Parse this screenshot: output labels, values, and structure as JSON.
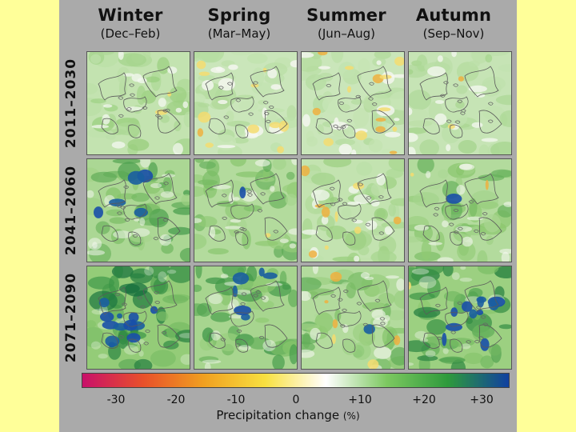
{
  "columns": [
    {
      "title": "Winter",
      "subtitle": "(Dec–Feb)"
    },
    {
      "title": "Spring",
      "subtitle": "(Mar–May)"
    },
    {
      "title": "Summer",
      "subtitle": "(Jun–Aug)"
    },
    {
      "title": "Autumn",
      "subtitle": "(Sep–Nov)"
    }
  ],
  "rows": [
    {
      "label": "2011–2030"
    },
    {
      "label": "2041–2060"
    },
    {
      "label": "2071–2090"
    }
  ],
  "panels": [
    [
      {
        "season": "Winter",
        "period": "2011–2030",
        "dominant_change": "slight increase (0 to +10%)",
        "intensity": 0.25,
        "dry_fraction": 0.05
      },
      {
        "season": "Spring",
        "period": "2011–2030",
        "dominant_change": "mixed, slight decrease in places (-10% to +10%)",
        "intensity": 0.15,
        "dry_fraction": 0.35
      },
      {
        "season": "Summer",
        "period": "2011–2030",
        "dominant_change": "mixed, slight decrease in places (-10% to +10%)",
        "intensity": 0.15,
        "dry_fraction": 0.45
      },
      {
        "season": "Autumn",
        "period": "2011–2030",
        "dominant_change": "slight increase (0 to +10%)",
        "intensity": 0.2,
        "dry_fraction": 0.05
      }
    ],
    [
      {
        "season": "Winter",
        "period": "2041–2060",
        "dominant_change": "increase (+10 to +20%), locally +30%",
        "intensity": 0.55,
        "dry_fraction": 0.0
      },
      {
        "season": "Spring",
        "period": "2041–2060",
        "dominant_change": "increase (+10 to +20%)",
        "intensity": 0.45,
        "dry_fraction": 0.02
      },
      {
        "season": "Summer",
        "period": "2041–2060",
        "dominant_change": "slight increase, some decrease (-10% to +10%)",
        "intensity": 0.25,
        "dry_fraction": 0.3
      },
      {
        "season": "Autumn",
        "period": "2041–2060",
        "dominant_change": "increase (+10 to +20%)",
        "intensity": 0.45,
        "dry_fraction": 0.05
      }
    ],
    [
      {
        "season": "Winter",
        "period": "2071–2090",
        "dominant_change": "strong increase (+20 to +30%)",
        "intensity": 0.85,
        "dry_fraction": 0.0
      },
      {
        "season": "Spring",
        "period": "2071–2090",
        "dominant_change": "increase (+10 to +30%)",
        "intensity": 0.6,
        "dry_fraction": 0.0
      },
      {
        "season": "Summer",
        "period": "2071–2090",
        "dominant_change": "increase (+10 to +20%), some decrease",
        "intensity": 0.45,
        "dry_fraction": 0.2
      },
      {
        "season": "Autumn",
        "period": "2071–2090",
        "dominant_change": "strong increase (+20 to +30%)",
        "intensity": 0.75,
        "dry_fraction": 0.02
      }
    ]
  ],
  "colorbar": {
    "ticks": [
      "-30",
      "-20",
      "-10",
      "0",
      "+10",
      "+20",
      "+30"
    ],
    "title": "Precipitation  change",
    "unit": "(%)",
    "range": [
      -35,
      35
    ],
    "colors": [
      "#c8106a",
      "#e8502a",
      "#f0a020",
      "#f8e040",
      "#ffffff",
      "#7cc860",
      "#2e9a3c",
      "#1040a0"
    ]
  }
}
